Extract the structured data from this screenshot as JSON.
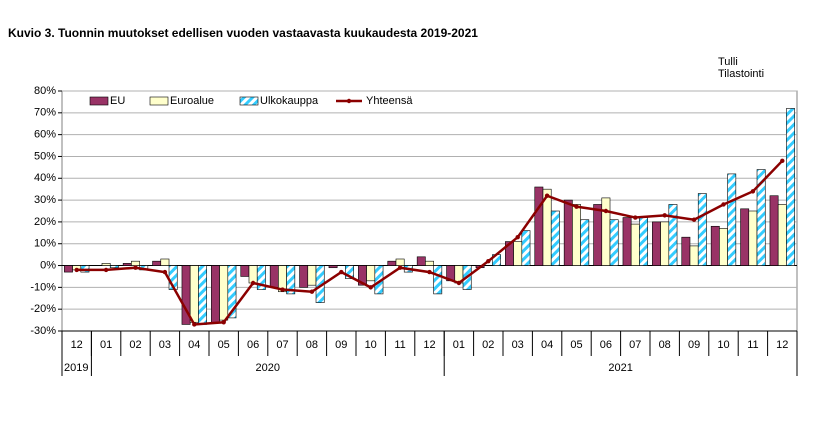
{
  "chart_data": {
    "type": "bar-line",
    "title": "Kuvio  3. Tuonnin  muutokset edellisen vuoden  vastaavasta kuukaudesta 2019-2021",
    "source": [
      "Tulli",
      "Tilastointi"
    ],
    "categories": [
      "12",
      "01",
      "02",
      "03",
      "04",
      "05",
      "06",
      "07",
      "08",
      "09",
      "10",
      "11",
      "12",
      "01",
      "02",
      "03",
      "04",
      "05",
      "06",
      "07",
      "08",
      "09",
      "10",
      "11",
      "12"
    ],
    "years": [
      "2019",
      "2020",
      "2021"
    ],
    "series": [
      {
        "name": "EU",
        "color": "#993366",
        "values": [
          -3,
          0,
          1,
          2,
          -27,
          -26,
          -5,
          -10,
          -10,
          -1,
          -9,
          2,
          4,
          -7,
          -1,
          11,
          36,
          30,
          28,
          22,
          20,
          13,
          18,
          26,
          32
        ]
      },
      {
        "name": "Euroalue",
        "color": "#ffffcc",
        "values": [
          -2,
          1,
          2,
          3,
          -26,
          -25,
          -8,
          -12,
          -9,
          0,
          -7,
          3,
          2,
          -8,
          0,
          11,
          35,
          28,
          31,
          19,
          20,
          9,
          17,
          25,
          28
        ]
      },
      {
        "name": "Ulkokauppa",
        "color": "#33ccff",
        "hatch": true,
        "values": [
          -3,
          -1,
          -2,
          -11,
          -27,
          -24,
          -11,
          -13,
          -17,
          -6,
          -13,
          -3,
          -13,
          -11,
          5,
          16,
          25,
          21,
          21,
          22,
          28,
          33,
          42,
          44,
          72
        ]
      },
      {
        "name": "Yhteensä",
        "color": "#8b0000",
        "type": "line",
        "values": [
          -2,
          -2,
          -1,
          -3,
          -27,
          -26,
          -8,
          -11,
          -12,
          -3,
          -10,
          -1,
          -3,
          -8,
          2,
          13,
          32,
          27,
          25,
          22,
          23,
          21,
          28,
          34,
          48
        ]
      }
    ],
    "ylim": [
      -30,
      80
    ],
    "yticks": [
      {
        "value": -30,
        "label": "-30%"
      },
      {
        "value": -20,
        "label": "-20%"
      },
      {
        "value": -10,
        "label": "-10%"
      },
      {
        "value": 0,
        "label": "0%"
      },
      {
        "value": 10,
        "label": "10%"
      },
      {
        "value": 20,
        "label": "20%"
      },
      {
        "value": 30,
        "label": "30%"
      },
      {
        "value": 40,
        "label": "40%"
      },
      {
        "value": 50,
        "label": "50%"
      },
      {
        "value": 60,
        "label": "60%"
      },
      {
        "value": 70,
        "label": "70%"
      },
      {
        "value": 80,
        "label": "80%"
      }
    ],
    "grid": true,
    "legend": "top"
  }
}
